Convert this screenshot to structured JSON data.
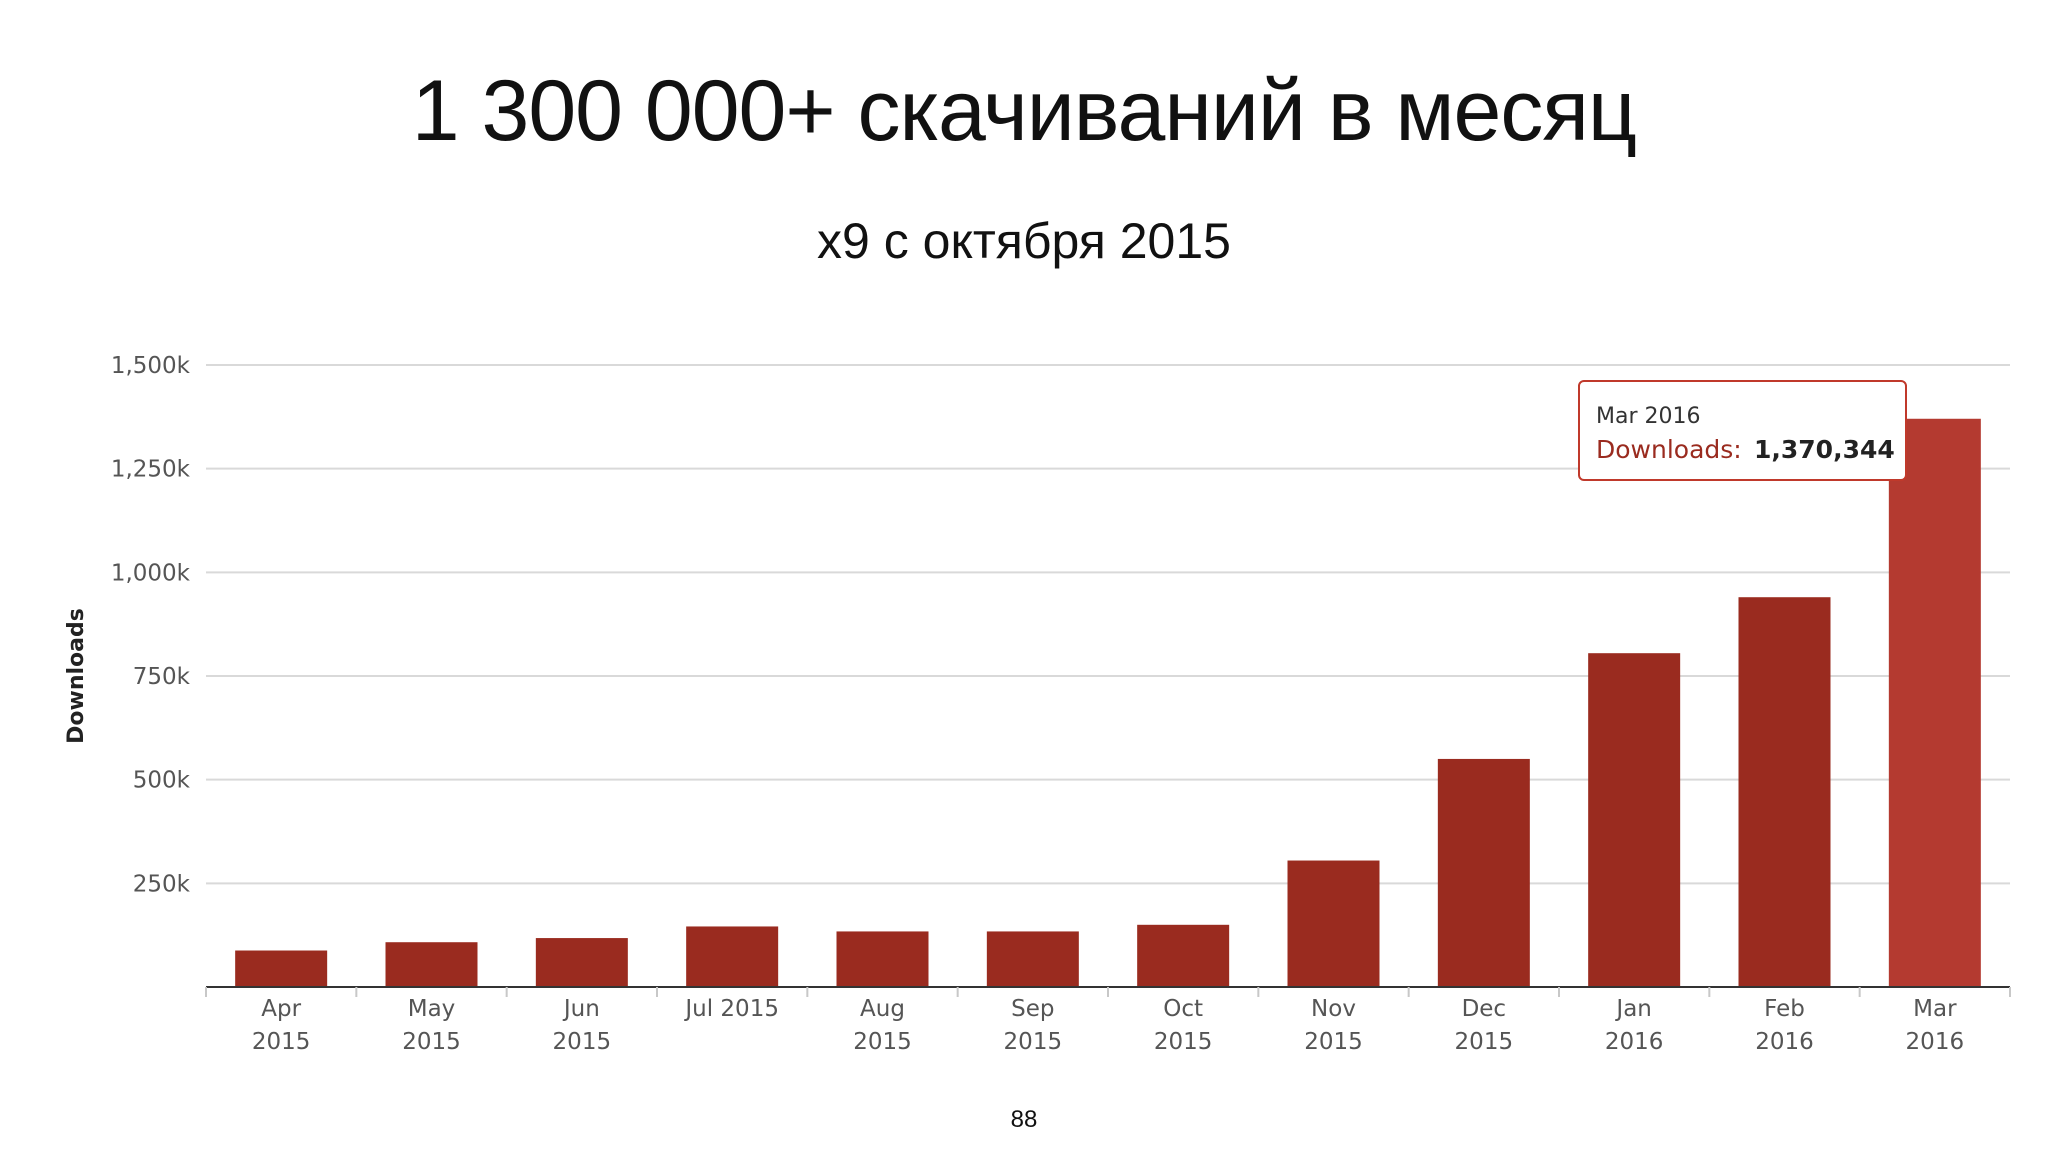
{
  "slide": {
    "title": "1 300 000+ скачиваний в месяц",
    "subtitle": "x9 с октября 2015",
    "page_number": "88"
  },
  "chart_data": {
    "type": "bar",
    "ylabel": "Downloads",
    "ylim": [
      0,
      1500000
    ],
    "yticks": [
      {
        "value": 250000,
        "label": "250k"
      },
      {
        "value": 500000,
        "label": "500k"
      },
      {
        "value": 750000,
        "label": "750k"
      },
      {
        "value": 1000000,
        "label": "1,000k"
      },
      {
        "value": 1250000,
        "label": "1,250k"
      },
      {
        "value": 1500000,
        "label": "1,500k"
      }
    ],
    "grid": true,
    "categories": [
      [
        "Apr",
        "2015"
      ],
      [
        "May",
        "2015"
      ],
      [
        "Jun",
        "2015"
      ],
      [
        "Jul 2015"
      ],
      [
        "Aug",
        "2015"
      ],
      [
        "Sep",
        "2015"
      ],
      [
        "Oct",
        "2015"
      ],
      [
        "Nov",
        "2015"
      ],
      [
        "Dec",
        "2015"
      ],
      [
        "Jan",
        "2016"
      ],
      [
        "Feb",
        "2016"
      ],
      [
        "Mar",
        "2016"
      ]
    ],
    "series": [
      {
        "values": [
          88000,
          108000,
          118000,
          146000,
          134000,
          134000,
          150000,
          305000,
          550000,
          805000,
          940000,
          1370344
        ]
      }
    ],
    "colors": {
      "bar": "#9a2b1f",
      "bar_highlight": "#b43a30",
      "grid": "#d9d9d9",
      "axis": "#333333",
      "tooltip_border": "#c0392b"
    },
    "highlight_index": 11,
    "tooltip": {
      "date": "Mar 2016",
      "label": "Downloads:",
      "value": "1,370,344"
    }
  }
}
